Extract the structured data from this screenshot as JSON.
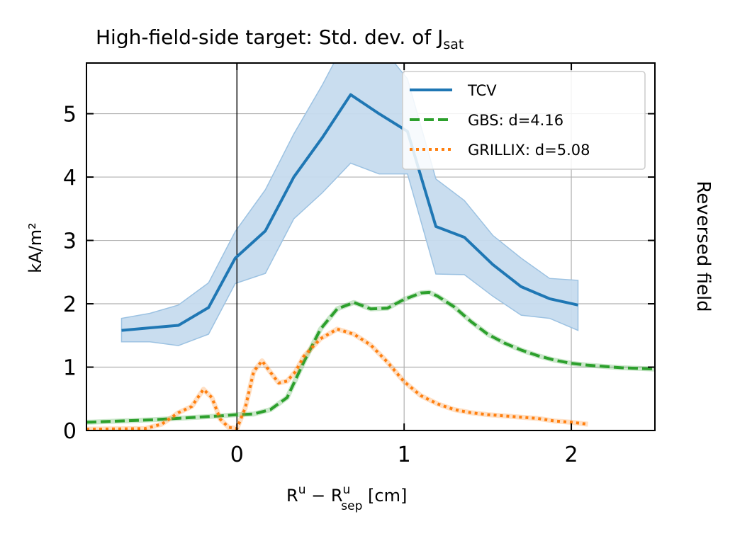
{
  "chart_data": {
    "type": "line",
    "title": "High-field-side target: Std. dev. of J",
    "title_sub": "sat",
    "xlabel": {
      "base1": "R",
      "sup1": "u",
      "middle": " − R",
      "sup2": "u",
      "sub2": "sep",
      "tail": " [cm]"
    },
    "ylabel": "kA/m²",
    "side_label": "Reversed field",
    "xlim": [
      -0.9,
      2.5
    ],
    "ylim": [
      0,
      5.8
    ],
    "xticks": [
      0,
      1,
      2
    ],
    "yticks": [
      0,
      1,
      2,
      3,
      4,
      5
    ],
    "grid": true,
    "legend_position": "top-right",
    "vline_x": 0,
    "series": [
      {
        "name": "TCV",
        "style": "solid",
        "color": "#1f77b4",
        "band_color": "#c6dbee",
        "x": [
          -0.69,
          -0.52,
          -0.35,
          -0.17,
          -0.01,
          0.17,
          0.34,
          0.51,
          0.68,
          0.85,
          1.02,
          1.19,
          1.36,
          1.53,
          1.7,
          1.87,
          2.04
        ],
        "y": [
          1.58,
          1.62,
          1.66,
          1.94,
          2.72,
          3.15,
          4.0,
          4.62,
          5.3,
          5.0,
          4.72,
          3.22,
          3.05,
          2.62,
          2.27,
          2.08,
          1.98
        ],
        "y_lower": [
          1.4,
          1.4,
          1.34,
          1.52,
          2.32,
          2.48,
          3.34,
          3.75,
          4.22,
          4.05,
          4.05,
          2.47,
          2.46,
          2.12,
          1.82,
          1.77,
          1.58
        ],
        "y_upper": [
          1.77,
          1.85,
          1.98,
          2.33,
          3.14,
          3.8,
          4.68,
          5.45,
          6.3,
          6.1,
          5.55,
          3.97,
          3.63,
          3.08,
          2.72,
          2.4,
          2.37
        ]
      },
      {
        "name": "GBS: d=4.16",
        "style": "dashed",
        "color": "#2ca02c",
        "x": [
          -0.9,
          -0.5,
          -0.3,
          -0.1,
          0.0,
          0.1,
          0.2,
          0.3,
          0.4,
          0.5,
          0.6,
          0.7,
          0.8,
          0.9,
          1.0,
          1.1,
          1.15,
          1.2,
          1.3,
          1.4,
          1.5,
          1.6,
          1.7,
          1.8,
          1.9,
          2.0,
          2.1,
          2.2,
          2.3,
          2.4,
          2.5
        ],
        "y": [
          0.13,
          0.17,
          0.2,
          0.23,
          0.25,
          0.26,
          0.33,
          0.52,
          1.08,
          1.6,
          1.92,
          2.02,
          1.92,
          1.93,
          2.07,
          2.17,
          2.18,
          2.12,
          1.95,
          1.72,
          1.52,
          1.38,
          1.27,
          1.18,
          1.11,
          1.06,
          1.03,
          1.01,
          0.99,
          0.98,
          0.97
        ]
      },
      {
        "name": "GRILLIX: d=5.08",
        "style": "dotted",
        "color": "#ff7f0e",
        "x": [
          -0.9,
          -0.55,
          -0.45,
          -0.35,
          -0.27,
          -0.2,
          -0.15,
          -0.1,
          -0.05,
          0.0,
          0.05,
          0.1,
          0.15,
          0.2,
          0.25,
          0.3,
          0.35,
          0.4,
          0.5,
          0.6,
          0.7,
          0.8,
          0.9,
          1.0,
          1.1,
          1.2,
          1.3,
          1.4,
          1.5,
          1.6,
          1.7,
          1.8,
          1.9,
          2.0,
          2.1
        ],
        "y": [
          0.02,
          0.03,
          0.1,
          0.28,
          0.38,
          0.65,
          0.52,
          0.18,
          0.05,
          0.03,
          0.36,
          0.93,
          1.1,
          0.92,
          0.75,
          0.78,
          0.93,
          1.17,
          1.45,
          1.6,
          1.52,
          1.35,
          1.08,
          0.77,
          0.55,
          0.42,
          0.33,
          0.28,
          0.25,
          0.23,
          0.21,
          0.19,
          0.15,
          0.13,
          0.1
        ]
      }
    ]
  }
}
